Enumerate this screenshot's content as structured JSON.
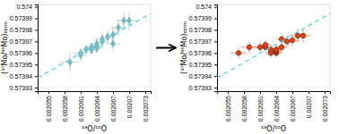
{
  "chart_data": [
    {
      "type": "scatter",
      "x_label": "¹⁸O/¹⁶O",
      "y_label": "(⁹⁷Mo/⁹⁵Mo)ₙₒᵣₘ",
      "xlim": [
        0.002053,
        0.002074
      ],
      "ylim": [
        0.573927,
        0.574002
      ],
      "xticks": [
        0.002055,
        0.002058,
        0.002061,
        0.002064,
        0.002067,
        0.00207,
        0.002073
      ],
      "yticks": [
        0.57393,
        0.57394,
        0.57395,
        0.57396,
        0.57397,
        0.57398,
        0.57399,
        0.574
      ],
      "series": [
        {
          "type": "scatter",
          "marker": "diamond",
          "color": "#7ab8bc",
          "x": [
            0.002059,
            0.002061,
            0.002061,
            0.002062,
            0.002063,
            0.002063,
            0.002063,
            0.002063,
            0.002064,
            0.002064,
            0.002064,
            0.002064,
            0.002065,
            0.002065,
            0.002066,
            0.002067,
            0.002067,
            0.002068,
            0.002069,
            0.00207
          ],
          "values": [
            0.573952,
            0.573958,
            0.57396,
            0.573963,
            0.573963,
            0.573963,
            0.573965,
            0.573965,
            0.573964,
            0.573965,
            0.573966,
            0.573968,
            0.57397,
            0.573972,
            0.573974,
            0.573976,
            0.573968,
            0.573982,
            0.573988,
            0.573988
          ],
          "xerr": [
            1.8e-06,
            1.2e-06,
            1.2e-06,
            1e-06,
            8e-07,
            8e-07,
            8e-07,
            8e-07,
            1e-06,
            1e-06,
            1e-06,
            1e-06,
            1e-06,
            1e-06,
            1.2e-06,
            1.2e-06,
            1.2e-06,
            1.5e-06,
            1.5e-06,
            1.5e-06
          ],
          "yerr": [
            9e-06,
            5e-06,
            5e-06,
            4e-06,
            4e-06,
            4e-06,
            4e-06,
            4e-06,
            4e-06,
            4e-06,
            4e-06,
            5e-06,
            5e-06,
            5e-06,
            6e-06,
            6e-06,
            6e-06,
            7e-06,
            8e-06,
            8e-06
          ]
        },
        {
          "type": "line",
          "line_style": "dashed",
          "color": "#50d0f0",
          "x": [
            0.002053,
            0.002074
          ],
          "values": [
            0.57393853,
            0.573994117
          ]
        }
      ]
    },
    {
      "type": "scatter",
      "x_label": "¹⁸O/¹⁶O",
      "y_label": "(⁹⁷Mo/⁹⁵Mo)ₙₒᵣₘ",
      "xlim": [
        0.002053,
        0.002074
      ],
      "ylim": [
        0.573927,
        0.574002
      ],
      "xticks": [
        0.002055,
        0.002058,
        0.002061,
        0.002064,
        0.002067,
        0.00207,
        0.002073
      ],
      "yticks": [
        0.57393,
        0.57394,
        0.57395,
        0.57396,
        0.57397,
        0.57398,
        0.57399,
        0.574
      ],
      "series": [
        {
          "type": "scatter",
          "marker": "circle",
          "color": "#e84010",
          "x": [
            0.002057,
            0.002059,
            0.002061,
            0.002062,
            0.002062,
            0.002063,
            0.002063,
            0.002064,
            0.002064,
            0.002064,
            0.002064,
            0.002065,
            0.002065,
            0.002066,
            0.002067,
            0.002068,
            0.002069
          ],
          "values": [
            0.57396,
            0.573965,
            0.573965,
            0.573965,
            0.573967,
            0.57396,
            0.573963,
            0.57396,
            0.573961,
            0.573962,
            0.573963,
            0.573965,
            0.573972,
            0.57397,
            0.573971,
            0.573975,
            0.573975
          ],
          "xerr": [
            1.5e-06,
            1.5e-06,
            1.2e-06,
            1e-06,
            1e-06,
            1e-06,
            1e-06,
            1e-06,
            1e-06,
            1e-06,
            1e-06,
            1e-06,
            1e-06,
            1.2e-06,
            1.2e-06,
            1.5e-06,
            1.5e-06
          ],
          "yerr": [
            5e-06,
            5e-06,
            5e-06,
            4e-06,
            4e-06,
            4e-06,
            4e-06,
            4e-06,
            4e-06,
            4e-06,
            4e-06,
            4e-06,
            5e-06,
            5e-06,
            5e-06,
            6e-06,
            6e-06
          ]
        },
        {
          "type": "line",
          "line_style": "dashed",
          "color": "#50d0f0",
          "x": [
            0.002053,
            0.002074
          ],
          "values": [
            0.57393853,
            0.573994117
          ]
        }
      ]
    }
  ]
}
